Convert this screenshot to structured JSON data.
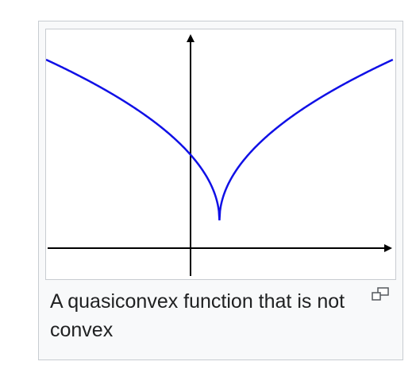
{
  "figure": {
    "caption": "A quasiconvex function that is not convex",
    "curve_color": "#1010e6",
    "axis_color": "#000000",
    "magnify_icon": "magnify-clip-icon"
  },
  "chart_data": {
    "type": "line",
    "title": "",
    "xlabel": "",
    "ylabel": "",
    "grid": false,
    "legend": "none",
    "series": [
      {
        "function": "sqrt(|x - 1|)",
        "x": [
          -5,
          -4,
          -3,
          -2,
          -1,
          0,
          1,
          2,
          3,
          4,
          5,
          6,
          7
        ],
        "y": [
          2.449,
          2.236,
          2.0,
          1.732,
          1.414,
          1.0,
          0.0,
          1.0,
          1.414,
          1.732,
          2.0,
          2.236,
          2.449
        ]
      }
    ]
  }
}
